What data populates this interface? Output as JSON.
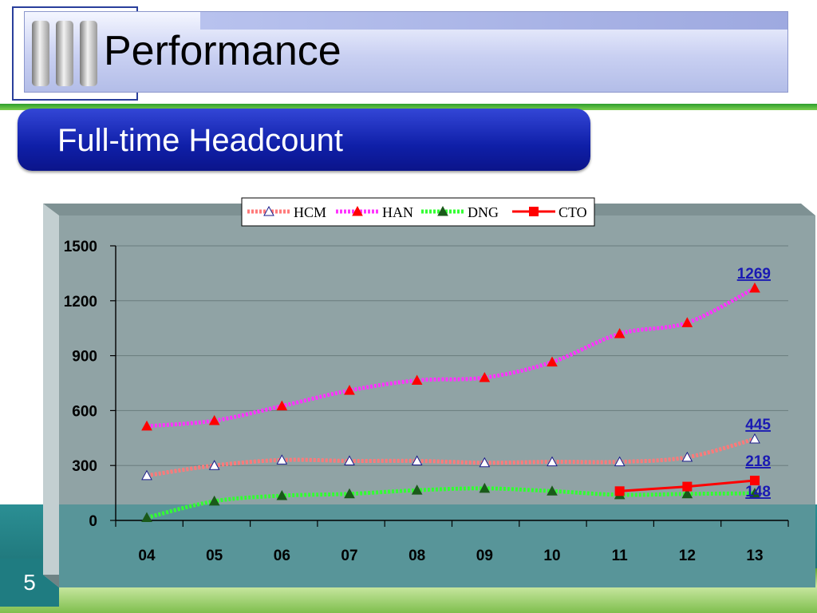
{
  "slide": {
    "title": "Performance",
    "subtitle": "Full-time Headcount",
    "number": "5"
  },
  "colors": {
    "HCM": "#ff7a7a",
    "HAN": "#ff33ff",
    "DNG": "#33ff33",
    "CTO": "#ff0000",
    "plot_bg": "#90a3a5",
    "label": "#1a1ab3"
  },
  "chart_data": {
    "type": "line",
    "categories": [
      "04",
      "05",
      "06",
      "07",
      "08",
      "09",
      "10",
      "11",
      "12",
      "13"
    ],
    "ylim": [
      0,
      1500
    ],
    "yticks": [
      0,
      300,
      600,
      900,
      1200,
      1500
    ],
    "grid": true,
    "legend": "top",
    "series": [
      {
        "name": "HCM",
        "values": [
          245,
          300,
          330,
          325,
          325,
          315,
          320,
          320,
          345,
          445
        ]
      },
      {
        "name": "HAN",
        "values": [
          515,
          545,
          625,
          710,
          765,
          780,
          865,
          1020,
          1080,
          1269
        ]
      },
      {
        "name": "DNG",
        "values": [
          15,
          105,
          135,
          145,
          165,
          175,
          160,
          140,
          145,
          148
        ]
      },
      {
        "name": "CTO",
        "values": [
          null,
          null,
          null,
          null,
          null,
          null,
          null,
          160,
          185,
          218
        ]
      }
    ],
    "annotations": [
      "1269",
      "445",
      "218",
      "148"
    ]
  }
}
